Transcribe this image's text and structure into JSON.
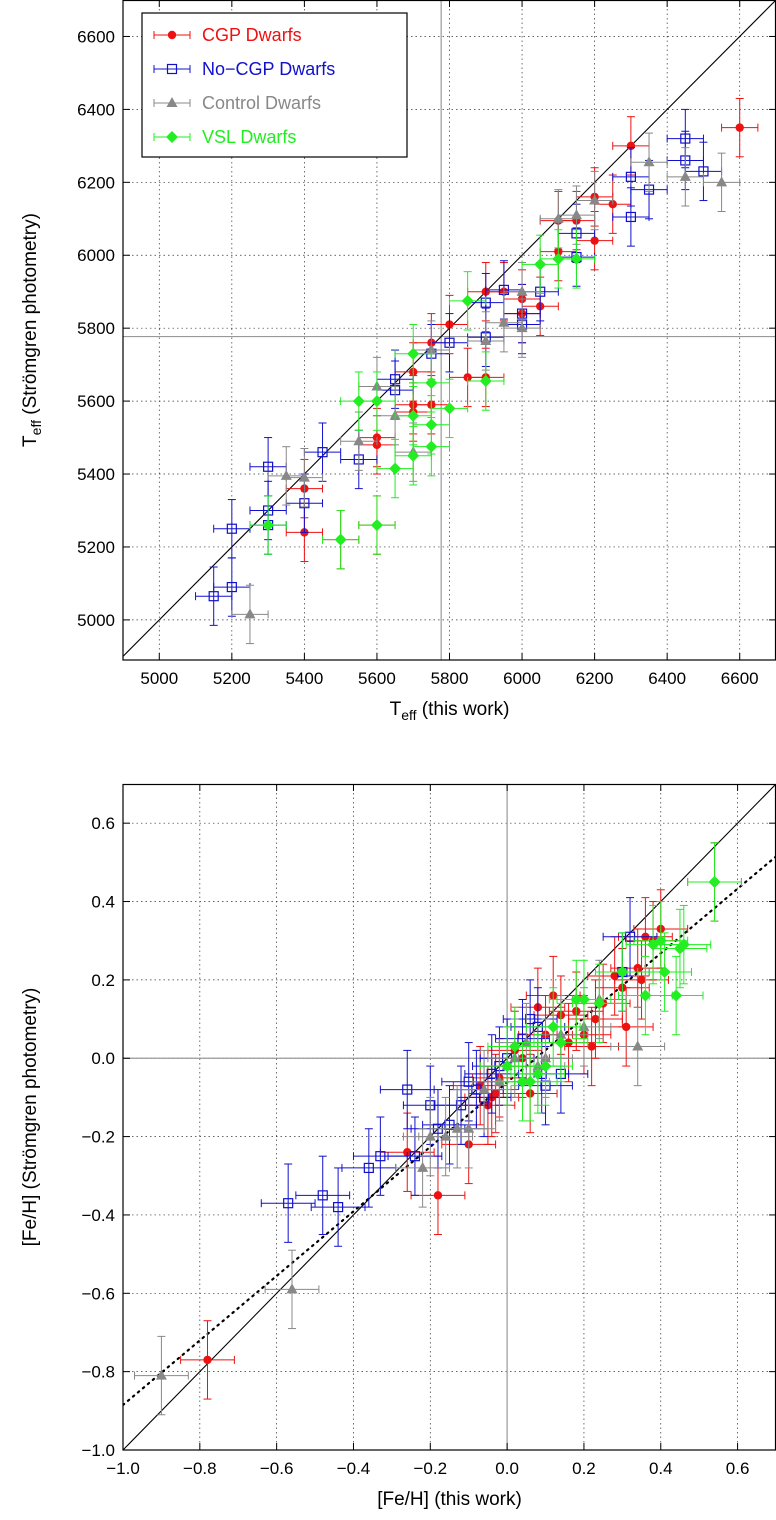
{
  "colors": {
    "cgp": "#ee1111",
    "nocgp": "#1111cc",
    "control": "#888888",
    "vsl": "#22ee22",
    "refline": "#999999"
  },
  "chart_data": [
    {
      "type": "scatter",
      "xlabel": {
        "base": "T",
        "sub": "eff",
        "rest": " (this work)"
      },
      "ylabel": {
        "base": "T",
        "sub": "eff",
        "rest": " (Strömgren photometry)"
      },
      "xlim": [
        4900,
        6700
      ],
      "ylim": [
        4890,
        6700
      ],
      "xticks": [
        5000,
        5200,
        5400,
        5600,
        5800,
        6000,
        6200,
        6400,
        6600
      ],
      "yticks": [
        5000,
        5200,
        5400,
        5600,
        5800,
        6000,
        6200,
        6400,
        6600
      ],
      "xticklabels": [
        "5000",
        "5200",
        "5400",
        "5600",
        "5800",
        "6000",
        "6200",
        "6400",
        "6600"
      ],
      "yticklabels": [
        "5000",
        "5200",
        "5400",
        "5600",
        "5800",
        "6000",
        "6200",
        "6400",
        "6600"
      ],
      "grid": true,
      "legend_position": "top-left",
      "reference_lines": {
        "one_to_one": true,
        "solar_x": 5777,
        "solar_y": 5777
      },
      "series": [
        {
          "name": "CGP Dwarfs",
          "key": "cgp",
          "marker": "circle",
          "xerr": 50,
          "yerr": 80,
          "points": [
            [
              5400,
              5240
            ],
            [
              5400,
              5360
            ],
            [
              5500,
              5220
            ],
            [
              5600,
              5260
            ],
            [
              5600,
              5480
            ],
            [
              5600,
              5500
            ],
            [
              5700,
              5590
            ],
            [
              5700,
              5570
            ],
            [
              5700,
              5680
            ],
            [
              5750,
              5590
            ],
            [
              5750,
              5760
            ],
            [
              5800,
              5810
            ],
            [
              5850,
              5665
            ],
            [
              5900,
              5665
            ],
            [
              5900,
              5900
            ],
            [
              5950,
              5900
            ],
            [
              6000,
              5880
            ],
            [
              6000,
              5840
            ],
            [
              6050,
              5860
            ],
            [
              6100,
              6010
            ],
            [
              6100,
              6095
            ],
            [
              6150,
              6095
            ],
            [
              6200,
              6040
            ],
            [
              6200,
              6160
            ],
            [
              6250,
              6140
            ],
            [
              6300,
              6300
            ],
            [
              6600,
              6350
            ]
          ]
        },
        {
          "name": "No−CGP Dwarfs",
          "key": "nocgp",
          "marker": "square-open",
          "xerr": 50,
          "yerr": 80,
          "points": [
            [
              5150,
              5065
            ],
            [
              5200,
              5090
            ],
            [
              5200,
              5250
            ],
            [
              5300,
              5260
            ],
            [
              5300,
              5300
            ],
            [
              5300,
              5420
            ],
            [
              5400,
              5320
            ],
            [
              5450,
              5460
            ],
            [
              5550,
              5440
            ],
            [
              5650,
              5660
            ],
            [
              5650,
              5630
            ],
            [
              5750,
              5730
            ],
            [
              5800,
              5760
            ],
            [
              5900,
              5775
            ],
            [
              5900,
              5870
            ],
            [
              5950,
              5905
            ],
            [
              6000,
              5840
            ],
            [
              6000,
              5810
            ],
            [
              6050,
              5900
            ],
            [
              6150,
              6060
            ],
            [
              6150,
              5995
            ],
            [
              6300,
              6215
            ],
            [
              6300,
              6105
            ],
            [
              6350,
              6180
            ],
            [
              6450,
              6260
            ],
            [
              6450,
              6320
            ],
            [
              6500,
              6230
            ]
          ]
        },
        {
          "name": "Control Dwarfs",
          "key": "control",
          "marker": "triangle",
          "xerr": 50,
          "yerr": 80,
          "points": [
            [
              5250,
              5015
            ],
            [
              5350,
              5395
            ],
            [
              5400,
              5390
            ],
            [
              5550,
              5490
            ],
            [
              5600,
              5640
            ],
            [
              5650,
              5560
            ],
            [
              5700,
              5460
            ],
            [
              5750,
              5740
            ],
            [
              5900,
              5765
            ],
            [
              5950,
              5815
            ],
            [
              6000,
              5900
            ],
            [
              6000,
              5800
            ],
            [
              6100,
              6100
            ],
            [
              6150,
              6110
            ],
            [
              6200,
              6150
            ],
            [
              6350,
              6255
            ],
            [
              6450,
              6215
            ],
            [
              6550,
              6200
            ]
          ]
        },
        {
          "name": "VSL Dwarfs",
          "key": "vsl",
          "marker": "diamond",
          "xerr": 50,
          "yerr": 80,
          "points": [
            [
              5300,
              5260
            ],
            [
              5500,
              5220
            ],
            [
              5550,
              5600
            ],
            [
              5600,
              5260
            ],
            [
              5600,
              5600
            ],
            [
              5650,
              5415
            ],
            [
              5700,
              5450
            ],
            [
              5700,
              5560
            ],
            [
              5700,
              5730
            ],
            [
              5750,
              5650
            ],
            [
              5750,
              5535
            ],
            [
              5750,
              5475
            ],
            [
              5800,
              5580
            ],
            [
              5850,
              5875
            ],
            [
              5900,
              5655
            ],
            [
              6050,
              5975
            ],
            [
              6100,
              5990
            ],
            [
              6150,
              5990
            ]
          ]
        }
      ]
    },
    {
      "type": "scatter",
      "xlabel": {
        "base": "[Fe/H] (this work)",
        "sub": "",
        "rest": ""
      },
      "ylabel": {
        "base": "[Fe/H] (Strömgren photometry)",
        "sub": "",
        "rest": ""
      },
      "xlim": [
        -1.0,
        0.7
      ],
      "ylim": [
        -1.0,
        0.7
      ],
      "xticks": [
        -1.0,
        -0.8,
        -0.6,
        -0.4,
        -0.2,
        0.0,
        0.2,
        0.4,
        0.6
      ],
      "yticks": [
        -1.0,
        -0.8,
        -0.6,
        -0.4,
        -0.2,
        0.0,
        0.2,
        0.4,
        0.6
      ],
      "xticklabels": [
        "−1.0",
        "−0.8",
        "−0.6",
        "−0.4",
        "−0.2",
        "0.0",
        "0.2",
        "0.4",
        "0.6"
      ],
      "yticklabels": [
        "−1.0",
        "−0.8",
        "−0.6",
        "−0.4",
        "−0.2",
        "0.0",
        "0.2",
        "0.4",
        "0.6"
      ],
      "grid": true,
      "reference_lines": {
        "one_to_one": true,
        "zero_x": 0.0,
        "zero_y": 0.0,
        "fit_line": [
          [
            -1.0,
            -0.885
          ],
          [
            0.7,
            0.515
          ]
        ]
      },
      "series": [
        {
          "name": "CGP Dwarfs",
          "key": "cgp",
          "marker": "circle",
          "xerr": 0.07,
          "yerr": 0.1,
          "points": [
            [
              -0.78,
              -0.77
            ],
            [
              -0.18,
              -0.35
            ],
            [
              -0.26,
              -0.24
            ],
            [
              -0.1,
              -0.22
            ],
            [
              -0.07,
              -0.07
            ],
            [
              -0.05,
              -0.12
            ],
            [
              -0.04,
              -0.1
            ],
            [
              -0.03,
              -0.09
            ],
            [
              -0.02,
              -0.05
            ],
            [
              0.0,
              -0.02
            ],
            [
              0.02,
              0.02
            ],
            [
              0.04,
              0.0
            ],
            [
              0.06,
              -0.09
            ],
            [
              0.08,
              0.13
            ],
            [
              0.1,
              0.06
            ],
            [
              0.12,
              0.16
            ],
            [
              0.14,
              0.11
            ],
            [
              0.16,
              0.04
            ],
            [
              0.18,
              0.12
            ],
            [
              0.2,
              0.06
            ],
            [
              0.22,
              0.03
            ],
            [
              0.23,
              0.1
            ],
            [
              0.25,
              0.14
            ],
            [
              0.28,
              0.21
            ],
            [
              0.3,
              0.18
            ],
            [
              0.31,
              0.08
            ],
            [
              0.34,
              0.23
            ],
            [
              0.35,
              0.2
            ],
            [
              0.36,
              0.31
            ],
            [
              0.38,
              0.3
            ],
            [
              0.4,
              0.33
            ],
            [
              0.54,
              0.45
            ]
          ]
        },
        {
          "name": "No−CGP Dwarfs",
          "key": "nocgp",
          "marker": "square-open",
          "xerr": 0.07,
          "yerr": 0.1,
          "points": [
            [
              -0.57,
              -0.37
            ],
            [
              -0.48,
              -0.35
            ],
            [
              -0.44,
              -0.38
            ],
            [
              -0.36,
              -0.28
            ],
            [
              -0.33,
              -0.25
            ],
            [
              -0.26,
              -0.08
            ],
            [
              -0.24,
              -0.25
            ],
            [
              -0.2,
              -0.12
            ],
            [
              -0.18,
              -0.18
            ],
            [
              -0.15,
              -0.17
            ],
            [
              -0.12,
              -0.12
            ],
            [
              -0.1,
              -0.06
            ],
            [
              -0.08,
              -0.08
            ],
            [
              -0.06,
              -0.1
            ],
            [
              -0.04,
              -0.04
            ],
            [
              -0.02,
              -0.02
            ],
            [
              0.0,
              0.0
            ],
            [
              0.04,
              0.05
            ],
            [
              0.06,
              0.1
            ],
            [
              0.08,
              0.08
            ],
            [
              0.09,
              -0.04
            ],
            [
              0.1,
              -0.07
            ],
            [
              0.14,
              -0.04
            ],
            [
              0.3,
              0.22
            ],
            [
              0.32,
              0.31
            ]
          ]
        },
        {
          "name": "Control Dwarfs",
          "key": "control",
          "marker": "triangle",
          "xerr": 0.07,
          "yerr": 0.1,
          "points": [
            [
              -0.9,
              -0.81
            ],
            [
              -0.56,
              -0.59
            ],
            [
              -0.22,
              -0.28
            ],
            [
              -0.2,
              -0.2
            ],
            [
              -0.16,
              -0.2
            ],
            [
              -0.13,
              -0.18
            ],
            [
              -0.1,
              -0.18
            ],
            [
              -0.06,
              -0.08
            ],
            [
              -0.02,
              -0.06
            ],
            [
              0.0,
              -0.02
            ],
            [
              0.02,
              0.0
            ],
            [
              0.05,
              0.04
            ],
            [
              0.08,
              -0.02
            ],
            [
              0.1,
              0.0
            ],
            [
              0.14,
              0.06
            ],
            [
              0.2,
              0.08
            ],
            [
              0.24,
              0.15
            ],
            [
              0.34,
              0.03
            ]
          ]
        },
        {
          "name": "VSL Dwarfs",
          "key": "vsl",
          "marker": "diamond",
          "xerr": 0.07,
          "yerr": 0.1,
          "points": [
            [
              0.0,
              -0.02
            ],
            [
              0.02,
              0.03
            ],
            [
              0.04,
              -0.06
            ],
            [
              0.06,
              -0.06
            ],
            [
              0.08,
              -0.04
            ],
            [
              0.1,
              -0.02
            ],
            [
              0.12,
              0.08
            ],
            [
              0.14,
              0.04
            ],
            [
              0.18,
              0.15
            ],
            [
              0.2,
              0.15
            ],
            [
              0.24,
              0.14
            ],
            [
              0.3,
              0.22
            ],
            [
              0.36,
              0.16
            ],
            [
              0.38,
              0.29
            ],
            [
              0.4,
              0.3
            ],
            [
              0.41,
              0.22
            ],
            [
              0.44,
              0.16
            ],
            [
              0.45,
              0.28
            ],
            [
              0.46,
              0.29
            ],
            [
              0.54,
              0.45
            ]
          ]
        }
      ]
    }
  ]
}
